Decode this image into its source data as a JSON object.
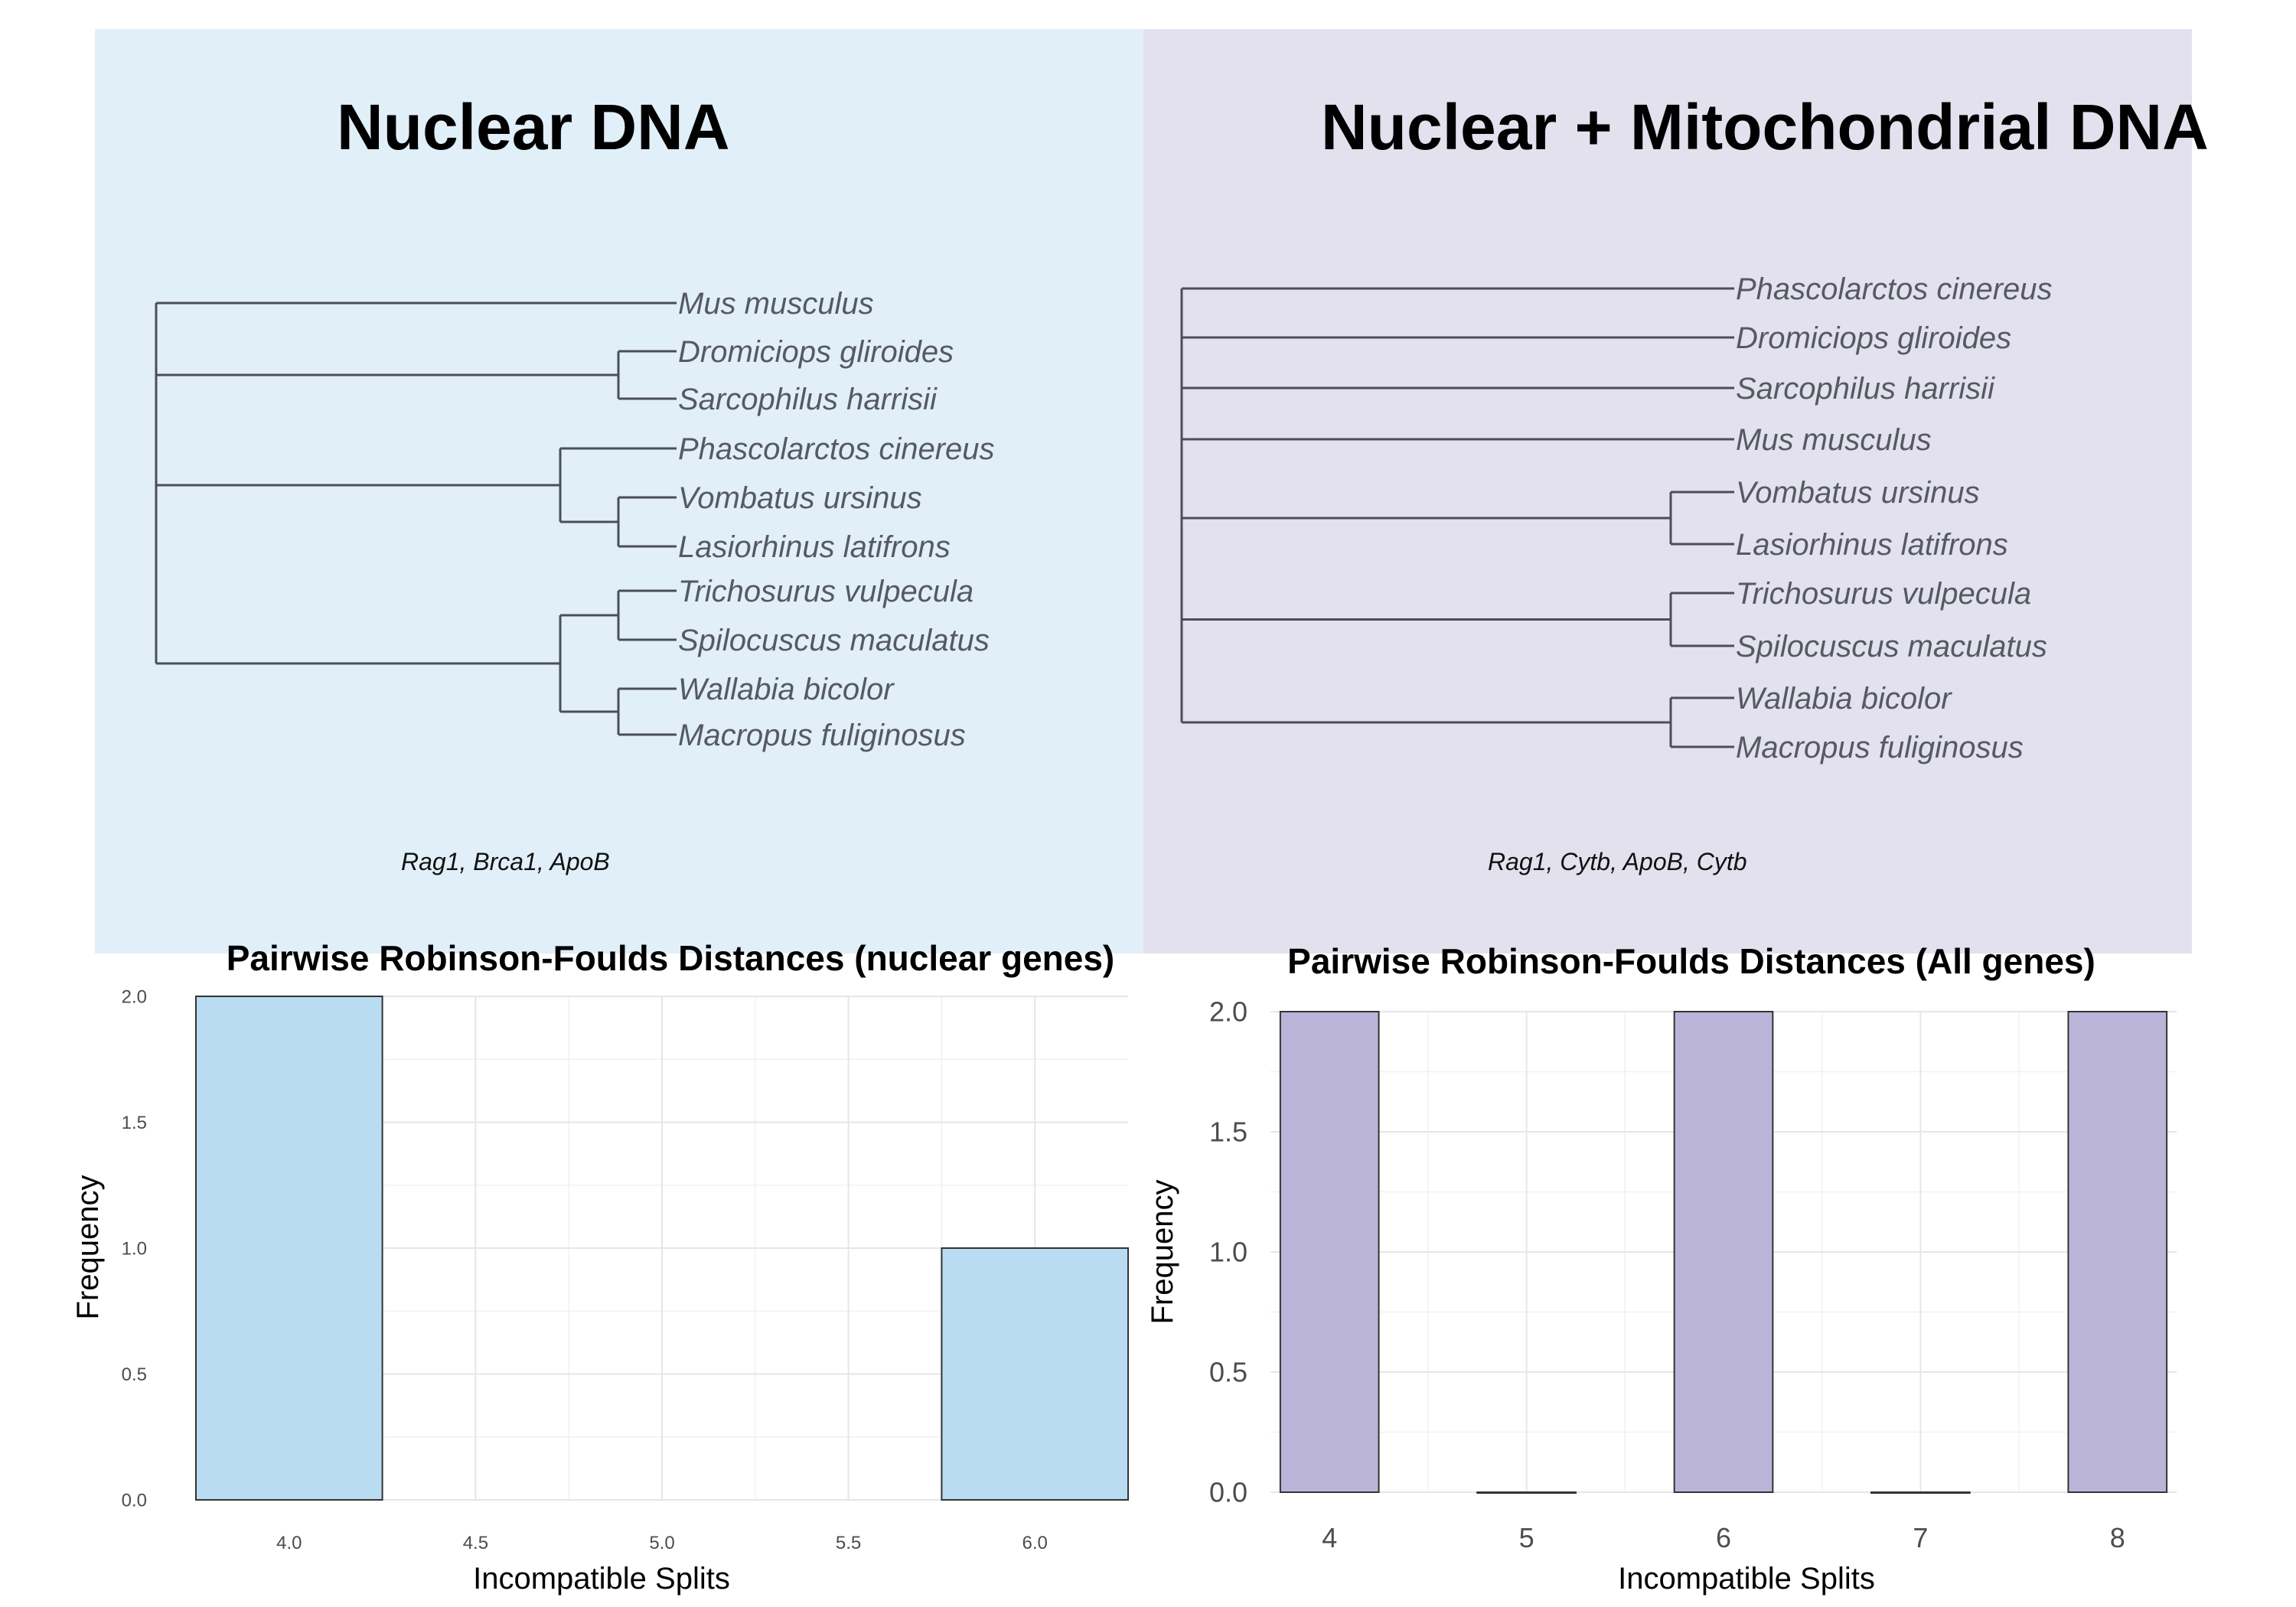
{
  "panels": {
    "left": {
      "title": "Nuclear DNA",
      "genes": "Rag1, Brca1, ApoB",
      "background": "#e1eff9"
    },
    "right": {
      "title": "Nuclear + Mitochondrial DNA",
      "genes": "Rag1, Cytb, ApoB, Cytb",
      "background": "#e3e1ee"
    }
  },
  "trees": {
    "left": {
      "tips": [
        "Mus musculus",
        "Dromiciops gliroides",
        "Sarcophilus harrisii",
        "Phascolarctos cinereus",
        "Vombatus ursinus",
        "Lasiorhinus latifrons",
        "Trichosurus vulpecula",
        "Spilocuscus maculatus",
        "Wallabia bicolor",
        "Macropus fuliginosus"
      ],
      "topology": [
        "Mus musculus",
        [
          "Dromiciops gliroides",
          "Sarcophilus harrisii"
        ],
        [
          "Phascolarctos cinereus",
          [
            "Vombatus ursinus",
            "Lasiorhinus latifrons"
          ]
        ],
        [
          [
            "Trichosurus vulpecula",
            "Spilocuscus maculatus"
          ],
          [
            "Wallabia bicolor",
            "Macropus fuliginosus"
          ]
        ]
      ]
    },
    "right": {
      "tips": [
        "Phascolarctos cinereus",
        "Dromiciops gliroides",
        "Sarcophilus harrisii",
        "Mus musculus",
        "Vombatus ursinus",
        "Lasiorhinus latifrons",
        "Trichosurus vulpecula",
        "Spilocuscus maculatus",
        "Wallabia bicolor",
        "Macropus fuliginosus"
      ],
      "topology": [
        "Phascolarctos cinereus",
        "Dromiciops gliroides",
        "Sarcophilus harrisii",
        "Mus musculus",
        [
          "Vombatus ursinus",
          "Lasiorhinus latifrons"
        ],
        [
          "Trichosurus vulpecula",
          "Spilocuscus maculatus"
        ],
        [
          "Wallabia bicolor",
          "Macropus fuliginosus"
        ]
      ]
    }
  },
  "chart_data": [
    {
      "type": "bar",
      "title": "Pairwise Robinson-Foulds Distances (nuclear genes)",
      "xlabel": "Incompatible Splits",
      "ylabel": "Frequency",
      "x": [
        4.0,
        6.0
      ],
      "values": [
        2,
        1
      ],
      "bin_width": 0.5,
      "xlim": [
        3.75,
        6.25
      ],
      "ylim": [
        0,
        2
      ],
      "x_ticks": [
        "4.0",
        "4.5",
        "5.0",
        "5.5",
        "6.0"
      ],
      "y_ticks": [
        "0.0",
        "0.5",
        "1.0",
        "1.5",
        "2.0"
      ],
      "grid": true,
      "fill_color": "#b9dcf2",
      "edge_color": "#333333"
    },
    {
      "type": "bar",
      "title": "Pairwise Robinson-Foulds Distances (All genes)",
      "xlabel": "Incompatible Splits",
      "ylabel": "Frequency",
      "x": [
        4,
        5,
        6,
        7,
        8
      ],
      "values": [
        2,
        0,
        2,
        0,
        2
      ],
      "bin_width": 0.5,
      "xlim": [
        3.7,
        8.3
      ],
      "ylim": [
        0,
        2
      ],
      "x_ticks": [
        "4",
        "5",
        "6",
        "7",
        "8"
      ],
      "y_ticks": [
        "0.0",
        "0.5",
        "1.0",
        "1.5",
        "2.0"
      ],
      "grid": true,
      "fill_color": "#bab4d9",
      "edge_color": "#333333"
    }
  ]
}
